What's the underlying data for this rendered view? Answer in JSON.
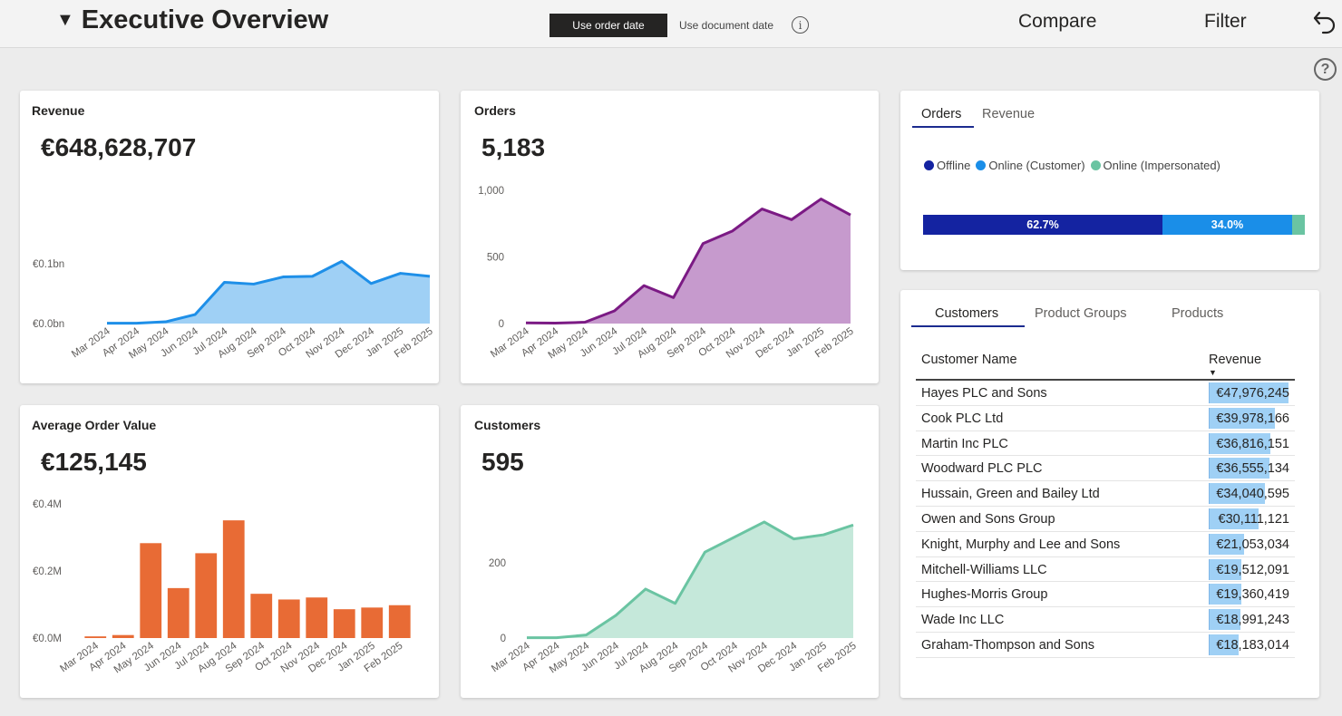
{
  "header": {
    "title": "Executive Overview",
    "use_order_date": "Use order date",
    "use_document_date": "Use document date",
    "info_symbol": "i",
    "compare": "Compare",
    "filter": "Filter",
    "help_symbol": "?"
  },
  "colors": {
    "revenue": "#1e8fe8",
    "revenue_fill": "#9fd0f5",
    "orders": "#7b1a84",
    "orders_fill": "#c69acd",
    "aov": "#e86b35",
    "customers": "#6ac4a2",
    "customers_fill": "#c5e8da",
    "offline": "#1423a1",
    "online_customer": "#1a8ee8",
    "online_impersonated": "#6ac4a2"
  },
  "revenue": {
    "title": "Revenue",
    "kpi": "€648,628,707",
    "chart_data": {
      "type": "area",
      "categories": [
        "Mar 2024",
        "Apr 2024",
        "May 2024",
        "Jun 2024",
        "Jul 2024",
        "Aug 2024",
        "Sep 2024",
        "Oct 2024",
        "Nov 2024",
        "Dec 2024",
        "Jan 2025",
        "Feb 2025"
      ],
      "values": [
        0.0005,
        0.0005,
        0.003,
        0.015,
        0.069,
        0.066,
        0.078,
        0.079,
        0.104,
        0.067,
        0.084,
        0.079
      ],
      "ylim": [
        0,
        0.15
      ],
      "yticks": [
        {
          "v": 0,
          "label": "€0.0bn"
        },
        {
          "v": 0.1,
          "label": "€0.1bn"
        }
      ]
    }
  },
  "orders": {
    "title": "Orders",
    "kpi": "5,183",
    "chart_data": {
      "type": "area",
      "categories": [
        "Mar 2024",
        "Apr 2024",
        "May 2024",
        "Jun 2024",
        "Jul 2024",
        "Aug 2024",
        "Sep 2024",
        "Oct 2024",
        "Nov 2024",
        "Dec 2024",
        "Jan 2025",
        "Feb 2025"
      ],
      "values": [
        5,
        3,
        10,
        95,
        285,
        195,
        600,
        695,
        860,
        780,
        935,
        815
      ],
      "ylim": [
        0,
        1000
      ],
      "yticks": [
        {
          "v": 0,
          "label": "0"
        },
        {
          "v": 500,
          "label": "500"
        },
        {
          "v": 1000,
          "label": "1,000"
        }
      ]
    }
  },
  "aov": {
    "title": "Average Order Value",
    "kpi": "€125,145",
    "chart_data": {
      "type": "bar",
      "categories": [
        "Mar 2024",
        "Apr 2024",
        "May 2024",
        "Jun 2024",
        "Jul 2024",
        "Aug 2024",
        "Sep 2024",
        "Oct 2024",
        "Nov 2024",
        "Dec 2024",
        "Jan 2025",
        "Feb 2025"
      ],
      "values": [
        0.005,
        0.009,
        0.283,
        0.149,
        0.253,
        0.351,
        0.132,
        0.115,
        0.121,
        0.086,
        0.091,
        0.098
      ],
      "ylim": [
        0,
        0.4
      ],
      "yticks": [
        {
          "v": 0,
          "label": "€0.0M"
        },
        {
          "v": 0.2,
          "label": "€0.2M"
        },
        {
          "v": 0.4,
          "label": "€0.4M"
        }
      ]
    }
  },
  "customers": {
    "title": "Customers",
    "kpi": "595",
    "chart_data": {
      "type": "area",
      "categories": [
        "Mar 2024",
        "Apr 2024",
        "May 2024",
        "Jun 2024",
        "Jul 2024",
        "Aug 2024",
        "Sep 2024",
        "Oct 2024",
        "Nov 2024",
        "Dec 2024",
        "Jan 2025",
        "Feb 2025"
      ],
      "values": [
        1,
        1,
        8,
        60,
        130,
        92,
        228,
        268,
        308,
        263,
        274,
        300
      ],
      "ylim": [
        0,
        380
      ],
      "yticks": [
        {
          "v": 0,
          "label": "0"
        },
        {
          "v": 200,
          "label": "200"
        }
      ]
    }
  },
  "channel": {
    "tabs": [
      "Orders",
      "Revenue"
    ],
    "legend": [
      "Offline",
      "Online (Customer)",
      "Online (Impersonated)"
    ],
    "chart_data": {
      "type": "bar",
      "orientation": "stacked-horizontal-100",
      "series": [
        {
          "name": "Offline",
          "value": 62.7,
          "label": "62.7%"
        },
        {
          "name": "Online (Customer)",
          "value": 34.0,
          "label": "34.0%"
        },
        {
          "name": "Online (Impersonated)",
          "value": 3.3,
          "label": ""
        }
      ]
    }
  },
  "ranking": {
    "tabs": [
      "Customers",
      "Product Groups",
      "Products"
    ],
    "col_name": "Customer Name",
    "col_revenue": "Revenue",
    "sort_symbol": "▼",
    "rows": [
      {
        "name": "Hayes PLC and Sons",
        "revenue": "€47,976,245",
        "value": 47976245
      },
      {
        "name": "Cook PLC Ltd",
        "revenue": "€39,978,166",
        "value": 39978166
      },
      {
        "name": "Martin Inc PLC",
        "revenue": "€36,816,151",
        "value": 36816151
      },
      {
        "name": "Woodward PLC PLC",
        "revenue": "€36,555,134",
        "value": 36555134
      },
      {
        "name": "Hussain, Green and Bailey Ltd",
        "revenue": "€34,040,595",
        "value": 34040595
      },
      {
        "name": "Owen and Sons Group",
        "revenue": "€30,111,121",
        "value": 30111121
      },
      {
        "name": "Knight, Murphy and Lee and Sons",
        "revenue": "€21,053,034",
        "value": 21053034
      },
      {
        "name": "Mitchell-Williams LLC",
        "revenue": "€19,512,091",
        "value": 19512091
      },
      {
        "name": "Hughes-Morris Group",
        "revenue": "€19,360,419",
        "value": 19360419
      },
      {
        "name": "Wade Inc LLC",
        "revenue": "€18,991,243",
        "value": 18991243
      },
      {
        "name": "Graham-Thompson and Sons",
        "revenue": "€18,183,014",
        "value": 18183014
      }
    ]
  }
}
